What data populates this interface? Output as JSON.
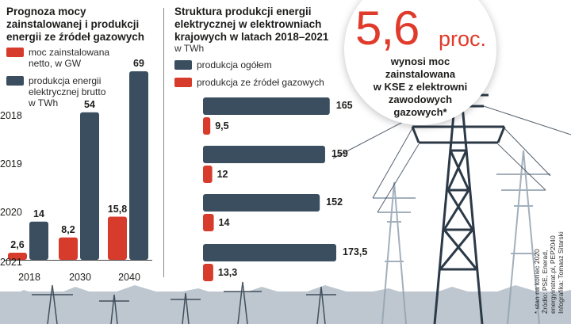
{
  "colors": {
    "dark_bar": "#3a4e60",
    "red_bar": "#d63b2c",
    "accent_text": "#e03a2b"
  },
  "left_chart": {
    "title": "Prognoza mocy zainstalowanej i produkcji energii ze źródeł gazowych",
    "legend": [
      {
        "label": "moc zainstalowana\nnetto, w GW",
        "color": "#d63b2c"
      },
      {
        "label": "produkcja energii\nelektrycznej brutto\nw TWh",
        "color": "#3a4e60"
      }
    ]
  },
  "right_chart": {
    "title": "Struktura produkcji energii elektrycznej w elektrowniach krajowych w latach 2018–2021",
    "unit": "w TWh",
    "legend": [
      {
        "label": "produkcja ogółem",
        "color": "#3a4e60"
      },
      {
        "label": "produkcja ze źródeł gazowych",
        "color": "#d63b2c"
      }
    ]
  },
  "highlight": {
    "value": "5,6",
    "unit": "proc.",
    "text": "wynosi moc zainstalowana\nw KSE z elektrowni\nzawodowych\ngazowych*"
  },
  "footnote": "* stan na koniec 2020\nŹródło: PSE, Enerad,\nenergyinstrat.pl, PEP2040\nInfografika: Tomasz Sitarski",
  "chart_data": [
    {
      "type": "bar",
      "categories": [
        "2018",
        "2030",
        "2040"
      ],
      "series": [
        {
          "name": "moc zainstalowana netto, w GW",
          "values": [
            2.6,
            8.2,
            15.8
          ],
          "labels": [
            "2,6",
            "8,2",
            "15,8"
          ]
        },
        {
          "name": "produkcja energii elektrycznej brutto w TWh",
          "values": [
            14,
            54,
            69
          ],
          "labels": [
            "14",
            "54",
            "69"
          ]
        }
      ],
      "ylim": [
        0,
        69
      ],
      "title": "Prognoza mocy zainstalowanej i produkcji energii ze źródeł gazowych"
    },
    {
      "type": "bar",
      "orientation": "horizontal",
      "categories": [
        "2018",
        "2019",
        "2020",
        "2021"
      ],
      "series": [
        {
          "name": "produkcja ogółem",
          "values": [
            165,
            159,
            152,
            173.5
          ],
          "labels": [
            "165",
            "159",
            "152",
            "173,5"
          ]
        },
        {
          "name": "produkcja ze źródeł gazowych",
          "values": [
            9.5,
            12,
            14,
            13.3
          ],
          "labels": [
            "9,5",
            "12",
            "14",
            "13,3"
          ]
        }
      ],
      "xlim": [
        0,
        173.5
      ],
      "title": "Struktura produkcji energii elektrycznej w elektrowniach krajowych w latach 2018–2021",
      "unit": "w TWh"
    }
  ]
}
